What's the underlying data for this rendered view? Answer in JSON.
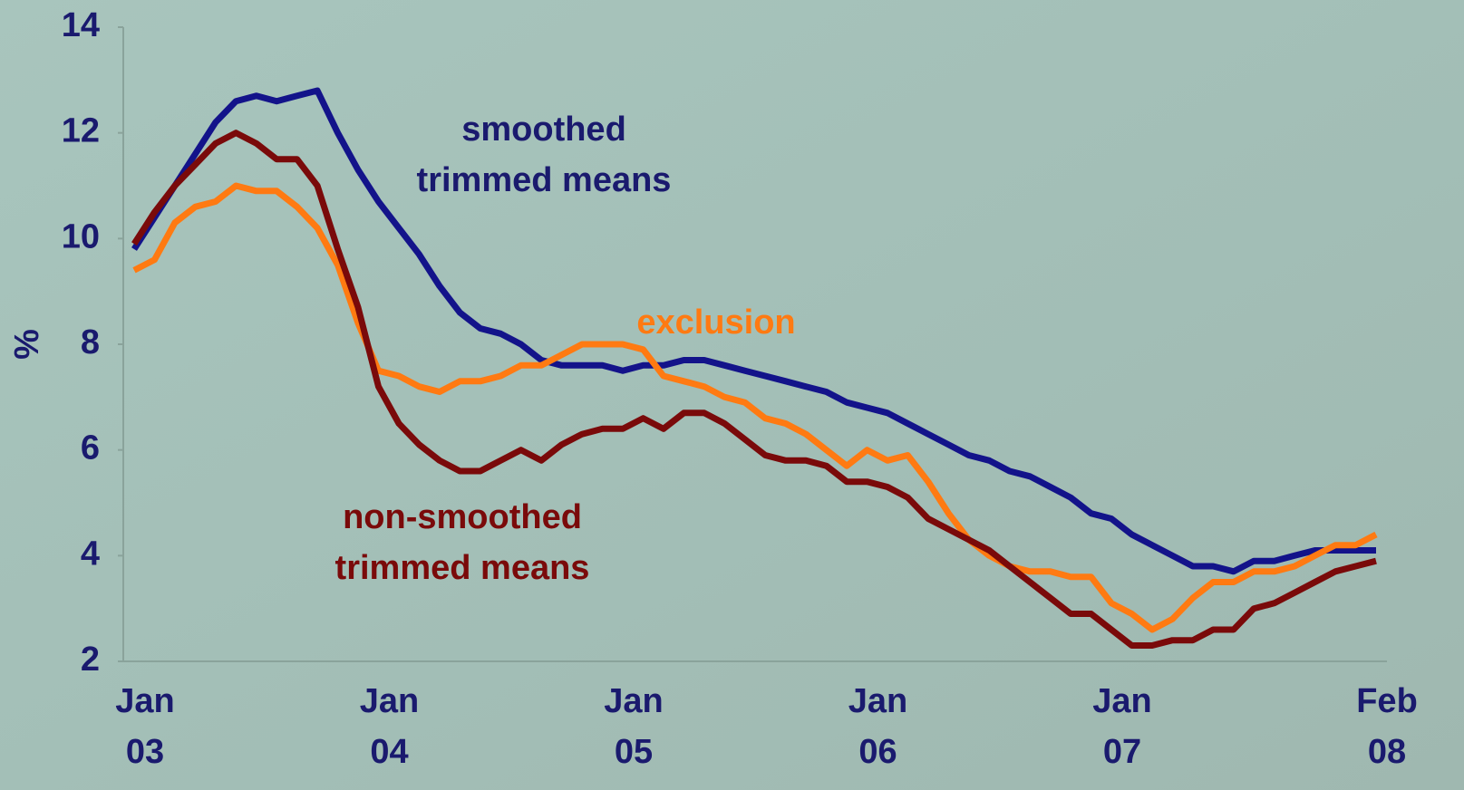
{
  "chart_data": {
    "type": "line",
    "y_label": "%",
    "categories": [
      "Jan 03",
      null,
      null,
      null,
      null,
      null,
      null,
      null,
      null,
      null,
      null,
      null,
      "Jan 04",
      null,
      null,
      null,
      null,
      null,
      null,
      null,
      null,
      null,
      null,
      null,
      "Jan 05",
      null,
      null,
      null,
      null,
      null,
      null,
      null,
      null,
      null,
      null,
      null,
      "Jan 06",
      null,
      null,
      null,
      null,
      null,
      null,
      null,
      null,
      null,
      null,
      null,
      "Jan 07",
      null,
      null,
      null,
      null,
      null,
      null,
      null,
      null,
      null,
      null,
      null,
      null,
      "Feb 08"
    ],
    "ylim": [
      2,
      14
    ],
    "yticks": [
      2,
      4,
      6,
      8,
      10,
      12,
      14
    ],
    "series": [
      {
        "name": "smoothed trimmed means",
        "color": "#13138a",
        "values": [
          9.8,
          10.4,
          11.0,
          11.6,
          12.2,
          12.6,
          12.7,
          12.6,
          12.7,
          12.8,
          12.0,
          11.3,
          10.7,
          10.2,
          9.7,
          9.1,
          8.6,
          8.3,
          8.2,
          8.0,
          7.7,
          7.6,
          7.6,
          7.6,
          7.5,
          7.6,
          7.6,
          7.7,
          7.7,
          7.6,
          7.5,
          7.4,
          7.3,
          7.2,
          7.1,
          6.9,
          6.8,
          6.7,
          6.5,
          6.3,
          6.1,
          5.9,
          5.8,
          5.6,
          5.5,
          5.3,
          5.1,
          4.8,
          4.7,
          4.4,
          4.2,
          4.0,
          3.8,
          3.8,
          3.7,
          3.9,
          3.9,
          4.0,
          4.1,
          4.1,
          4.1,
          4.1
        ]
      },
      {
        "name": "exclusion",
        "color": "#ff7a12",
        "values": [
          9.4,
          9.6,
          10.3,
          10.6,
          10.7,
          11.0,
          10.9,
          10.9,
          10.6,
          10.2,
          9.5,
          8.4,
          7.5,
          7.4,
          7.2,
          7.1,
          7.3,
          7.3,
          7.4,
          7.6,
          7.6,
          7.8,
          8.0,
          8.0,
          8.0,
          7.9,
          7.4,
          7.3,
          7.2,
          7.0,
          6.9,
          6.6,
          6.5,
          6.3,
          6.0,
          5.7,
          6.0,
          5.8,
          5.9,
          5.4,
          4.8,
          4.3,
          4.0,
          3.8,
          3.7,
          3.7,
          3.6,
          3.6,
          3.1,
          2.9,
          2.6,
          2.8,
          3.2,
          3.5,
          3.5,
          3.7,
          3.7,
          3.8,
          4.0,
          4.2,
          4.2,
          4.4
        ]
      },
      {
        "name": "non-smoothed trimmed means",
        "color": "#7a0a0a",
        "values": [
          9.9,
          10.5,
          11.0,
          11.4,
          11.8,
          12.0,
          11.8,
          11.5,
          11.5,
          11.0,
          9.8,
          8.7,
          7.2,
          6.5,
          6.1,
          5.8,
          5.6,
          5.6,
          5.8,
          6.0,
          5.8,
          6.1,
          6.3,
          6.4,
          6.4,
          6.6,
          6.4,
          6.7,
          6.7,
          6.5,
          6.2,
          5.9,
          5.8,
          5.8,
          5.7,
          5.4,
          5.4,
          5.3,
          5.1,
          4.7,
          4.5,
          4.3,
          4.1,
          3.8,
          3.5,
          3.2,
          2.9,
          2.9,
          2.6,
          2.3,
          2.3,
          2.4,
          2.4,
          2.6,
          2.6,
          3.0,
          3.1,
          3.3,
          3.5,
          3.7,
          3.8,
          3.9
        ]
      }
    ]
  }
}
